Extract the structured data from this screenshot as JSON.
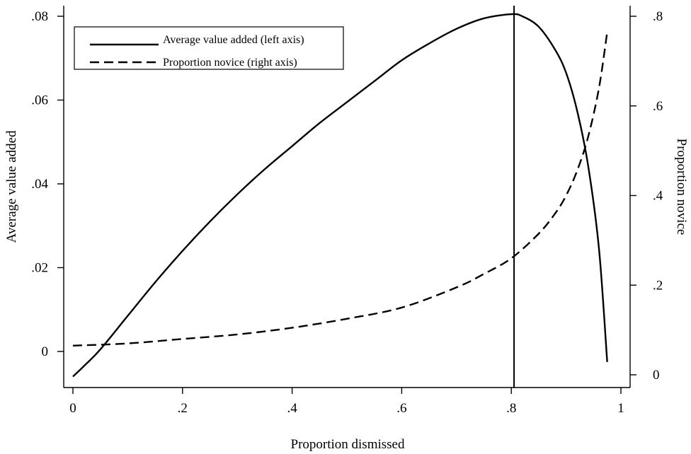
{
  "chart_data": {
    "type": "line",
    "title": "",
    "xlabel": "Proportion dismissed",
    "ylabel_left": "Average value added",
    "ylabel_right": "Proportion novice",
    "xlim": [
      0,
      1
    ],
    "ylim_left": [
      0,
      0.08
    ],
    "ylim_right": [
      0,
      0.8
    ],
    "x_ticks": [
      "0",
      ".2",
      ".4",
      ".6",
      ".8",
      "1"
    ],
    "x_tick_values": [
      0,
      0.2,
      0.4,
      0.6,
      0.8,
      1
    ],
    "y_left_ticks": [
      "0",
      ".02",
      ".04",
      ".06",
      ".08"
    ],
    "y_left_tick_values": [
      0,
      0.02,
      0.04,
      0.06,
      0.08
    ],
    "y_right_ticks": [
      "0",
      ".2",
      ".4",
      ".6",
      ".8"
    ],
    "y_right_tick_values": [
      0,
      0.2,
      0.4,
      0.6,
      0.8
    ],
    "grid": false,
    "legend": "top-left",
    "vertical_line_x": 0.805,
    "series": [
      {
        "name": "Average value added (left axis)",
        "axis": "left",
        "style": "solid",
        "x": [
          0,
          0.02,
          0.05,
          0.1,
          0.15,
          0.2,
          0.25,
          0.3,
          0.35,
          0.4,
          0.45,
          0.5,
          0.55,
          0.6,
          0.65,
          0.7,
          0.75,
          0.8,
          0.82,
          0.85,
          0.88,
          0.9,
          0.92,
          0.94,
          0.96,
          0.975
        ],
        "y": [
          -0.006,
          -0.0035,
          0.0005,
          0.0085,
          0.0165,
          0.024,
          0.031,
          0.0375,
          0.0435,
          0.049,
          0.0545,
          0.0595,
          0.0645,
          0.0695,
          0.0735,
          0.077,
          0.0795,
          0.0805,
          0.08,
          0.0775,
          0.072,
          0.0665,
          0.0575,
          0.0445,
          0.0245,
          -0.0025
        ]
      },
      {
        "name": "Proportion novice (right axis)",
        "axis": "right",
        "style": "dashed",
        "x": [
          0,
          0.1,
          0.2,
          0.3,
          0.4,
          0.5,
          0.6,
          0.7,
          0.75,
          0.8,
          0.85,
          0.88,
          0.9,
          0.92,
          0.94,
          0.96,
          0.975
        ],
        "y": [
          0.065,
          0.07,
          0.08,
          0.09,
          0.105,
          0.125,
          0.15,
          0.195,
          0.225,
          0.26,
          0.315,
          0.36,
          0.4,
          0.455,
          0.53,
          0.64,
          0.765
        ]
      }
    ]
  }
}
